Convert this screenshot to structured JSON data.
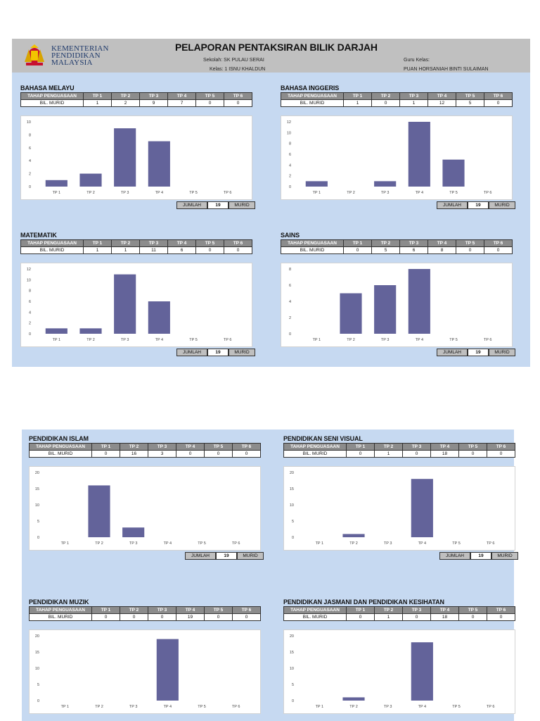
{
  "header": {
    "ministry_lines": [
      "KEMENTERIAN",
      "PENDIDIKAN",
      "MALAYSIA"
    ],
    "title": "PELAPORAN PENTAKSIRAN BILIK DARJAH",
    "sekolah": "Sekolah:  SK PULAU SERAI",
    "kelas": "Kelas:  1 ISNU KHALDUN",
    "guru_label": "Guru Kelas:",
    "guru_name": "PUAN HORSANIAH BINTI SULAIMAN"
  },
  "table_head": [
    "TAHAP PENGUASAAN",
    "TP 1",
    "TP 2",
    "TP 3",
    "TP 4",
    "TP 5",
    "TP 6"
  ],
  "row_label": "BIL. MURID",
  "jumlah": {
    "label": "JUMLAH",
    "unit": "MURID"
  },
  "subjects": [
    {
      "name": "BAHASA MELAYU",
      "values": [
        1,
        2,
        9,
        7,
        0,
        0
      ],
      "total": "19",
      "chart_data": {
        "type": "bar",
        "categories": [
          "TP 1",
          "TP 2",
          "TP 3",
          "TP 4",
          "TP 5",
          "TP 6"
        ],
        "values": [
          1,
          2,
          9,
          7,
          0,
          0
        ],
        "ylim": [
          0,
          10
        ],
        "ticks": [
          0,
          2,
          4,
          6,
          8,
          10
        ]
      }
    },
    {
      "name": "BAHASA INGGERIS",
      "values": [
        1,
        0,
        1,
        12,
        5,
        0
      ],
      "total": "19",
      "chart_data": {
        "type": "bar",
        "categories": [
          "TP 1",
          "TP 2",
          "TP 3",
          "TP 4",
          "TP 5",
          "TP 6"
        ],
        "values": [
          1,
          0,
          1,
          12,
          5,
          0
        ],
        "ylim": [
          0,
          12
        ],
        "ticks": [
          0,
          2,
          4,
          6,
          8,
          10,
          12
        ]
      }
    },
    {
      "name": "MATEMATIK",
      "values": [
        1,
        1,
        11,
        6,
        0,
        0
      ],
      "total": "19",
      "chart_data": {
        "type": "bar",
        "categories": [
          "TP 1",
          "TP 2",
          "TP 3",
          "TP 4",
          "TP 5",
          "TP 6"
        ],
        "values": [
          1,
          1,
          11,
          6,
          0,
          0
        ],
        "ylim": [
          0,
          12
        ],
        "ticks": [
          0,
          2,
          4,
          6,
          8,
          10,
          12
        ]
      }
    },
    {
      "name": "SAINS",
      "values": [
        0,
        5,
        6,
        8,
        0,
        0
      ],
      "total": "19",
      "chart_data": {
        "type": "bar",
        "categories": [
          "TP 1",
          "TP 2",
          "TP 3",
          "TP 4",
          "TP 5",
          "TP 6"
        ],
        "values": [
          0,
          5,
          6,
          8,
          0,
          0
        ],
        "ylim": [
          0,
          8
        ],
        "ticks": [
          0,
          2,
          4,
          6,
          8
        ]
      }
    },
    {
      "name": "PENDIDIKAN ISLAM",
      "values": [
        0,
        16,
        3,
        0,
        0,
        0
      ],
      "total": "19",
      "chart_data": {
        "type": "bar",
        "categories": [
          "TP 1",
          "TP 2",
          "TP 3",
          "TP 4",
          "TP 5",
          "TP 6"
        ],
        "values": [
          0,
          16,
          3,
          0,
          0,
          0
        ],
        "ylim": [
          0,
          20
        ],
        "ticks": [
          0,
          5,
          10,
          15,
          20
        ]
      }
    },
    {
      "name": "PENDIDIKAN SENI VISUAL",
      "values": [
        0,
        1,
        0,
        18,
        0,
        0
      ],
      "total": "19",
      "chart_data": {
        "type": "bar",
        "categories": [
          "TP 1",
          "TP 2",
          "TP 3",
          "TP 4",
          "TP 5",
          "TP 6"
        ],
        "values": [
          0,
          1,
          0,
          18,
          0,
          0
        ],
        "ylim": [
          0,
          20
        ],
        "ticks": [
          0,
          5,
          10,
          15,
          20
        ]
      }
    },
    {
      "name": "PENDIDIKAN MUZIK",
      "values": [
        0,
        0,
        0,
        19,
        0,
        0
      ],
      "total": "",
      "chart_data": {
        "type": "bar",
        "categories": [
          "TP 1",
          "TP 2",
          "TP 3",
          "TP 4",
          "TP 5",
          "TP 6"
        ],
        "values": [
          0,
          0,
          0,
          19,
          0,
          0
        ],
        "ylim": [
          0,
          20
        ],
        "ticks": [
          0,
          5,
          10,
          15,
          20
        ]
      }
    },
    {
      "name": "PENDIDIKAN JASMANI DAN PENDIDIKAN KESIHATAN",
      "values": [
        0,
        1,
        0,
        18,
        0,
        0
      ],
      "total": "",
      "chart_data": {
        "type": "bar",
        "categories": [
          "TP 1",
          "TP 2",
          "TP 3",
          "TP 4",
          "TP 5",
          "TP 6"
        ],
        "values": [
          0,
          1,
          0,
          18,
          0,
          0
        ],
        "ylim": [
          0,
          20
        ],
        "ticks": [
          0,
          5,
          10,
          15,
          20
        ]
      }
    }
  ],
  "colors": {
    "bar": "#63639a",
    "sheet": "#c6d9f1",
    "header_band": "#c0c0c0"
  }
}
